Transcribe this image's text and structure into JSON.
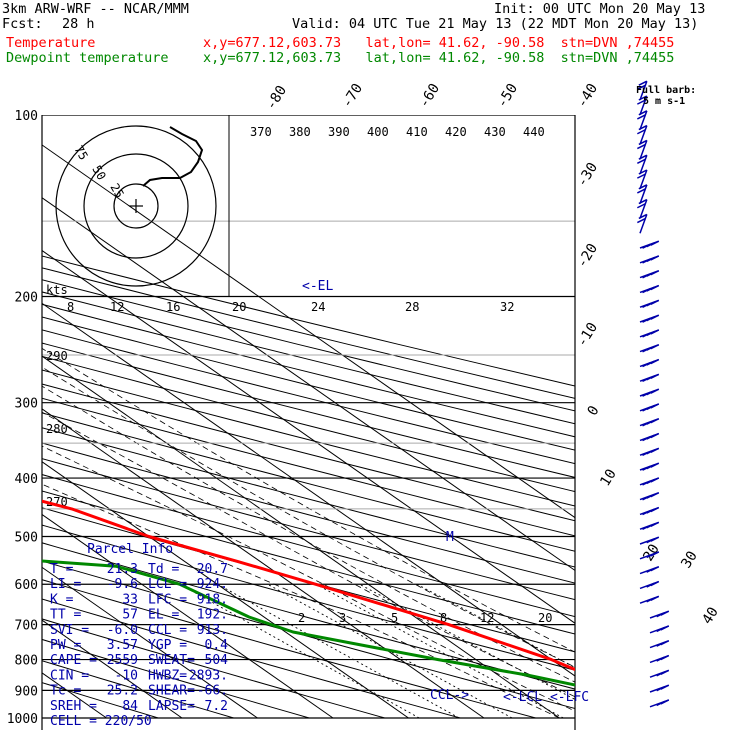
{
  "header": {
    "model": "3km ARW-WRF -- NCAR/MMM",
    "init": "Init: 00 UTC Mon 20 May 13",
    "fcst_label": "Fcst:",
    "fcst_value": "28 h",
    "valid": "Valid: 04 UTC Tue 21 May 13 (22 MDT Mon 20 May 13)",
    "temp_label": "Temperature",
    "dew_label": "Dewpoint temperature",
    "location": "x,y=677.12,603.73   lat,lon= 41.62, -90.58  stn=DVN ,74455"
  },
  "colors": {
    "temperature": "#ff0000",
    "dewpoint": "#008800",
    "barb": "#0000aa",
    "axes": "#000000"
  },
  "chart_data": {
    "type": "line",
    "title": "",
    "y_axis": {
      "name": "pressure (hPa)",
      "scale": "log",
      "reversed": true,
      "range": [
        1000,
        100
      ],
      "ticks": [
        1000,
        900,
        800,
        700,
        600,
        500,
        400,
        300,
        200,
        100
      ]
    },
    "isotherm_ticks": [
      "-80",
      "-70",
      "-60",
      "-50",
      "-40",
      "-30",
      "-20",
      "-10",
      "0",
      "10",
      "20",
      "30",
      "40"
    ],
    "theta_labels": [
      "370",
      "380",
      "390",
      "400",
      "410",
      "420",
      "430",
      "440"
    ],
    "theta_side_labels": [
      "290",
      "280",
      "270"
    ],
    "mixing_ratio_labels": [
      "2",
      "3",
      "5",
      "8",
      "12",
      "20"
    ],
    "series": [
      {
        "name": "Temperature",
        "color": "#ff0000",
        "points": [
          [
            100,
            -53
          ],
          [
            120,
            -58
          ],
          [
            140,
            -61
          ],
          [
            160,
            -70
          ],
          [
            180,
            -75
          ],
          [
            200,
            -75
          ],
          [
            230,
            -68
          ],
          [
            260,
            -60
          ],
          [
            300,
            -48
          ],
          [
            340,
            -38
          ],
          [
            400,
            -25
          ],
          [
            450,
            -15
          ],
          [
            500,
            -10
          ],
          [
            550,
            -3
          ],
          [
            600,
            3
          ],
          [
            700,
            13
          ],
          [
            800,
            20
          ],
          [
            850,
            22
          ],
          [
            900,
            21.3
          ],
          [
            950,
            22
          ],
          [
            980,
            20.7
          ]
        ]
      },
      {
        "name": "Dewpoint temperature",
        "color": "#008800",
        "points": [
          [
            100,
            -80
          ],
          [
            130,
            -84
          ],
          [
            160,
            -88
          ],
          [
            180,
            -87
          ],
          [
            200,
            -86
          ],
          [
            240,
            -81
          ],
          [
            280,
            -68
          ],
          [
            320,
            -62
          ],
          [
            360,
            -55
          ],
          [
            400,
            -58
          ],
          [
            430,
            -75
          ],
          [
            470,
            -95
          ],
          [
            500,
            -70
          ],
          [
            560,
            -20
          ],
          [
            600,
            -15
          ],
          [
            680,
            -12
          ],
          [
            720,
            -9
          ],
          [
            800,
            5
          ],
          [
            850,
            14
          ],
          [
            900,
            20.7
          ],
          [
            950,
            20
          ],
          [
            980,
            20.2
          ]
        ]
      }
    ],
    "annotations": {
      "el": "<-EL",
      "ccl": "CCL->",
      "lcl_lfc": "<-LCL <-LFC",
      "m": "M"
    },
    "wind_barb_header": [
      "Full barb:",
      "5 m s-1"
    ],
    "hodograph": {
      "speed_label": "kts",
      "speed_ticks": [
        "8",
        "12",
        "16",
        "20",
        "24",
        "28",
        "32"
      ],
      "ring_labels": [
        "75",
        "50",
        "25"
      ]
    },
    "parcel_info": {
      "title": "Parcel Info",
      "rows": [
        [
          "T  =",
          "21.3",
          "Td =",
          "20.7"
        ],
        [
          "LI =",
          "-9.6",
          "LCL =",
          "924."
        ],
        [
          "K  =",
          "33",
          "LFC =",
          "918."
        ],
        [
          "TT =",
          "57",
          "EL  =",
          "192."
        ],
        [
          "SVI =",
          "-6.0",
          "CCL =",
          "913."
        ],
        [
          "PW =",
          "3.57",
          "YGP =",
          "0.4"
        ],
        [
          "CAPE =",
          "2559",
          "SWEAT=",
          "504"
        ],
        [
          "CIN  =",
          "-10",
          "HWBZ=",
          "2893."
        ],
        [
          "Tc =",
          "25.2",
          "SHEAR=",
          "-66."
        ],
        [
          "SREH =",
          "84",
          "LAPSE=",
          "7.2"
        ]
      ],
      "cell": "CELL = 220/50"
    }
  }
}
